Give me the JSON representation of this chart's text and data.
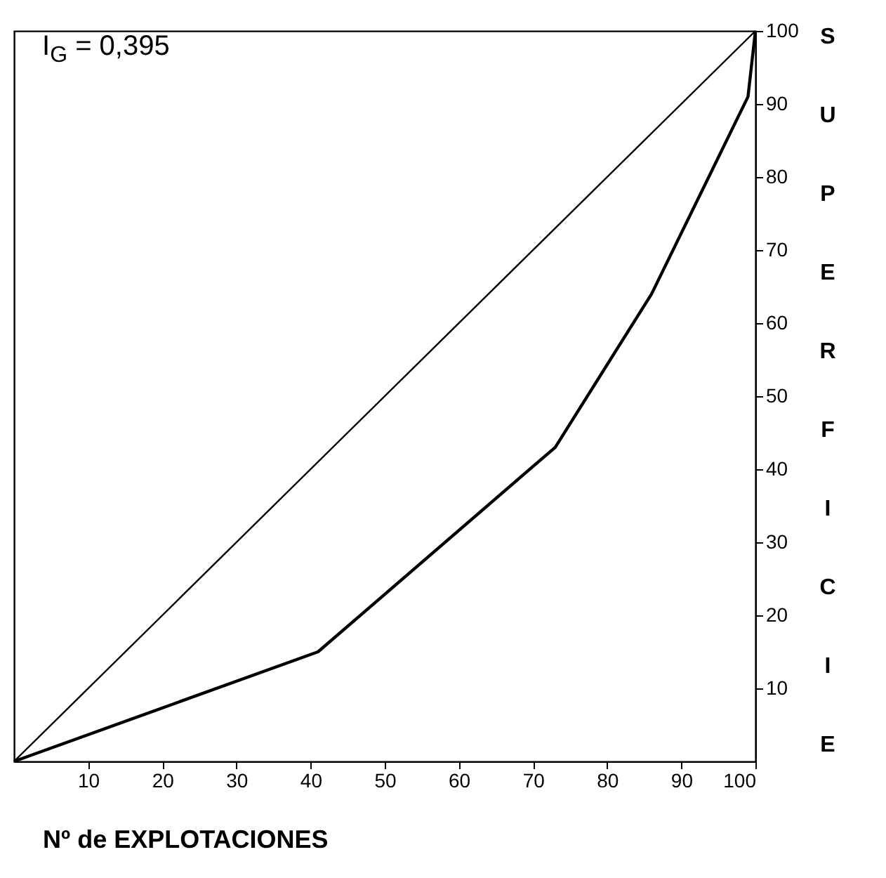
{
  "chart_data": {
    "type": "line",
    "xlabel": "Nº de EXPLOTACIONES",
    "ylabel": "SUPERFICIE",
    "annotations": [
      "I$_{G}$ = 0,395"
    ],
    "series": [
      {
        "color": "#000000",
        "x": [
          0,
          100
        ],
        "values": [
          0,
          100
        ]
      },
      {
        "color": "#000000",
        "x": [
          0,
          41,
          73,
          86,
          99,
          100
        ],
        "values": [
          0,
          15,
          43,
          64,
          91,
          100
        ]
      }
    ],
    "xlim": [
      0,
      100
    ],
    "ylim": [
      0,
      100
    ],
    "xticks": [
      10,
      20,
      30,
      40,
      50,
      60,
      70,
      80,
      90,
      100
    ],
    "yticks": [
      10,
      20,
      30,
      40,
      50,
      60,
      70,
      80,
      90,
      100
    ],
    "grid": false,
    "marker": "none",
    "line_style": "solid"
  }
}
